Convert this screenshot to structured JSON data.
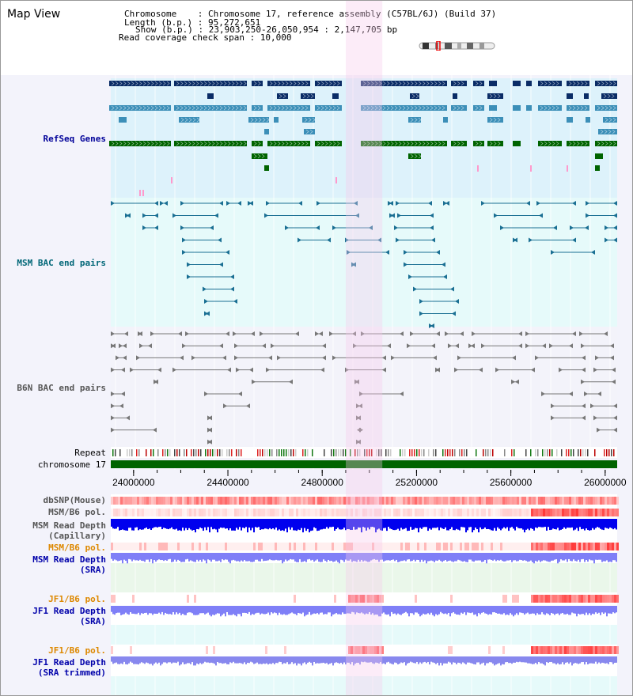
{
  "title": "Map View",
  "header": {
    "chromosome_label": "Chromosome    : ",
    "chromosome_value": "Chromosome 17, reference assembly (C57BL/6J) (Build 37)",
    "length_label": "Length (b.p.) : ",
    "length_value": "95,272,651",
    "show_label": "Show (b.p.) : ",
    "show_value": "23,903,250-26,050,954 : 2,147,705 bp",
    "span_label": "Read coverage check span : ",
    "span_value": "10,000"
  },
  "tracks": {
    "refseq": {
      "label": "RefSeq Genes",
      "color": "#000099"
    },
    "msm_bac": {
      "label": "MSM BAC end pairs",
      "color": "#006677"
    },
    "b6n_bac": {
      "label": "B6N BAC end pairs",
      "color": "#555555"
    },
    "repeat": {
      "label": "Repeat",
      "color": "#000000"
    },
    "chromosome": {
      "label": "chromosome 17",
      "color": "#000000"
    },
    "dbsnp": {
      "label": "dbSNP(Mouse)",
      "color": "#555555"
    },
    "msm_b6_pol_1": {
      "label": "MSM/B6 pol.",
      "color": "#555555"
    },
    "msm_depth_cap": {
      "label": "MSM Read Depth\n(Capillary)",
      "color": "#555555"
    },
    "msm_b6_pol_2": {
      "label": "MSM/B6 pol.",
      "color": "#dd8800"
    },
    "msm_depth_sra": {
      "label": "MSM Read Depth\n(SRA)",
      "color": "#0000aa"
    },
    "jf1_b6_pol_1": {
      "label": "JF1/B6 pol.",
      "color": "#dd8800"
    },
    "jf1_depth_sra": {
      "label": "JF1 Read Depth\n(SRA)",
      "color": "#0000aa"
    },
    "jf1_b6_pol_2": {
      "label": "JF1/B6 pol.",
      "color": "#dd8800"
    },
    "jf1_depth_trim": {
      "label": "JF1 Read Depth\n(SRA trimmed)",
      "color": "#0000aa"
    }
  },
  "axis": {
    "ticks": [
      "24000000",
      "24400000",
      "24800000",
      "25200000",
      "25600000",
      "26000000"
    ],
    "tick_values": [
      24000000,
      24400000,
      24800000,
      25200000,
      25600000,
      26000000
    ],
    "range": [
      23903250,
      26050954
    ]
  },
  "highlight": {
    "start": 24900000,
    "end": 25055000,
    "color": "#f5c8ec"
  },
  "colors": {
    "refseq_bg": "#ddf2fb",
    "msm_bg": "#e6fafa",
    "b6n_bg": "#f3f3fa",
    "refseq_dark": "#0a2c66",
    "refseq_mid": "#3c8fb8",
    "refseq_green": "#006400",
    "msm_pair": "#1a6f93",
    "b6n_pair": "#777777",
    "chrom_bar": "#006400",
    "depth_cap": "#0000ee",
    "depth_sra": "#7f7ff7",
    "pol_red": "#ee2222"
  }
}
